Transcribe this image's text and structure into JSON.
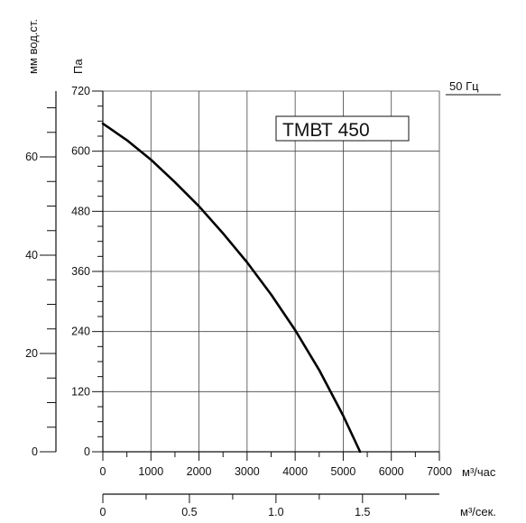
{
  "chart_data": {
    "type": "line",
    "title": "ТМВТ 450",
    "frequency_label": "50 Гц",
    "x_unit_label": "м³/час",
    "x2_unit_label": "м³/сек.",
    "y_unit_label": "Па",
    "y2_unit_label": "мм вод.ст.",
    "xlim": [
      0,
      7000
    ],
    "ylim": [
      0,
      720
    ],
    "x2lim": [
      0,
      1.944
    ],
    "y2lim": [
      0,
      73.4
    ],
    "x_ticks": [
      "0",
      "1000",
      "2000",
      "3000",
      "4000",
      "5000",
      "6000",
      "7000"
    ],
    "y_ticks": [
      "0",
      "120",
      "240",
      "360",
      "480",
      "600",
      "720"
    ],
    "x2_ticks": [
      "0",
      "0.5",
      "1.0",
      "1.5"
    ],
    "y2_ticks": [
      "0",
      "20",
      "40",
      "60"
    ],
    "grid": true,
    "series": [
      {
        "color": "#000000",
        "x": [
          0,
          500,
          1000,
          1500,
          2000,
          2500,
          3000,
          3500,
          4000,
          4500,
          5000,
          5350
        ],
        "y": [
          655,
          622,
          583,
          538,
          490,
          436,
          378,
          314,
          243,
          163,
          72,
          0
        ]
      }
    ]
  }
}
